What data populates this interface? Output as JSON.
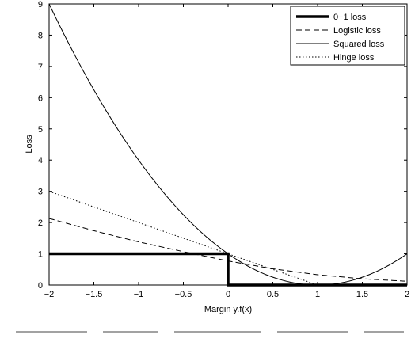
{
  "chart_data": {
    "type": "line",
    "title": "",
    "xlabel": "Margin y.f(x)",
    "ylabel": "Loss",
    "xlim": [
      -2,
      2
    ],
    "ylim": [
      0,
      9
    ],
    "xticks": [
      "−2",
      "−1.5",
      "−1",
      "−0.5",
      "0",
      "0.5",
      "1",
      "1.5",
      "2"
    ],
    "xtick_values": [
      -2,
      -1.5,
      -1,
      -0.5,
      0,
      0.5,
      1,
      1.5,
      2
    ],
    "yticks": [
      "0",
      "1",
      "2",
      "3",
      "4",
      "5",
      "6",
      "7",
      "8",
      "9"
    ],
    "ytick_values": [
      0,
      1,
      2,
      3,
      4,
      5,
      6,
      7,
      8,
      9
    ],
    "grid": false,
    "legend_position": "top-right",
    "series": [
      {
        "name": "0−1 loss",
        "style": "thick-solid",
        "x": [
          -2,
          0,
          0,
          2
        ],
        "y": [
          1,
          1,
          0,
          0
        ]
      },
      {
        "name": "Logistic loss",
        "style": "dashed",
        "x": [
          -2,
          -1.5,
          -1,
          -0.5,
          0,
          0.5,
          1,
          1.5,
          2
        ],
        "y": [
          2.13,
          1.74,
          1.38,
          1.07,
          0.77,
          0.52,
          0.33,
          0.2,
          0.12
        ]
      },
      {
        "name": "Squared loss",
        "style": "thin-solid",
        "x": [
          -2,
          -1.5,
          -1,
          -0.5,
          0,
          0.5,
          1,
          1.5,
          2
        ],
        "y": [
          9,
          6.25,
          4,
          2.25,
          1,
          0.25,
          0,
          0.25,
          1
        ]
      },
      {
        "name": "Hinge loss",
        "style": "dotted",
        "x": [
          -2,
          1,
          2
        ],
        "y": [
          3,
          0,
          0
        ]
      }
    ]
  }
}
